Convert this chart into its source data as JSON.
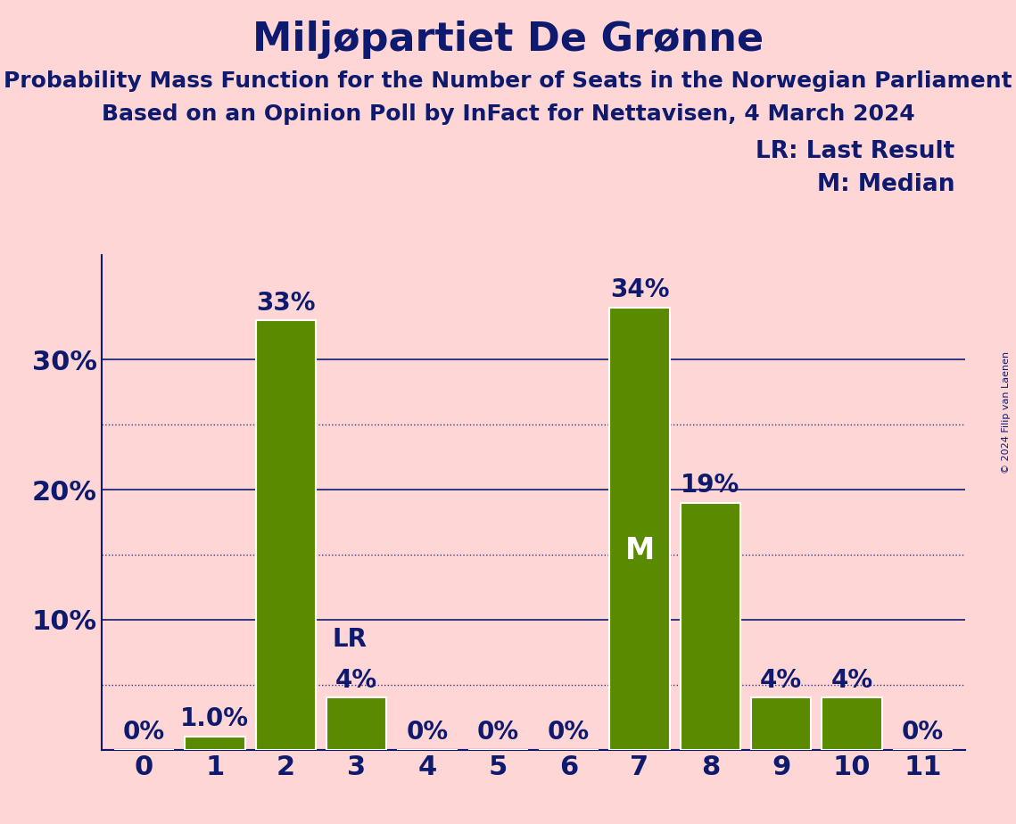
{
  "title": "Miljøpartiet De Grønne",
  "subtitle1": "Probability Mass Function for the Number of Seats in the Norwegian Parliament",
  "subtitle2": "Based on an Opinion Poll by InFact for Nettavisen, 4 March 2024",
  "copyright": "© 2024 Filip van Laenen",
  "seats": [
    0,
    1,
    2,
    3,
    4,
    5,
    6,
    7,
    8,
    9,
    10,
    11
  ],
  "probabilities": [
    0.0,
    1.0,
    33.0,
    4.0,
    0.0,
    0.0,
    0.0,
    34.0,
    19.0,
    4.0,
    4.0,
    0.0
  ],
  "bar_color": "#5a8a00",
  "background_color": "#ffd6d6",
  "text_color": "#0d1a6e",
  "bar_edge_color": "#ffffff",
  "lr_seat": 3,
  "median_seat": 7,
  "yticks_solid": [
    10,
    20,
    30
  ],
  "yticks_dotted": [
    5,
    15,
    25
  ],
  "ylim": [
    0,
    38
  ],
  "title_fontsize": 32,
  "subtitle_fontsize": 18,
  "tick_fontsize": 22,
  "bar_label_fontsize": 20,
  "legend_fontsize": 19
}
